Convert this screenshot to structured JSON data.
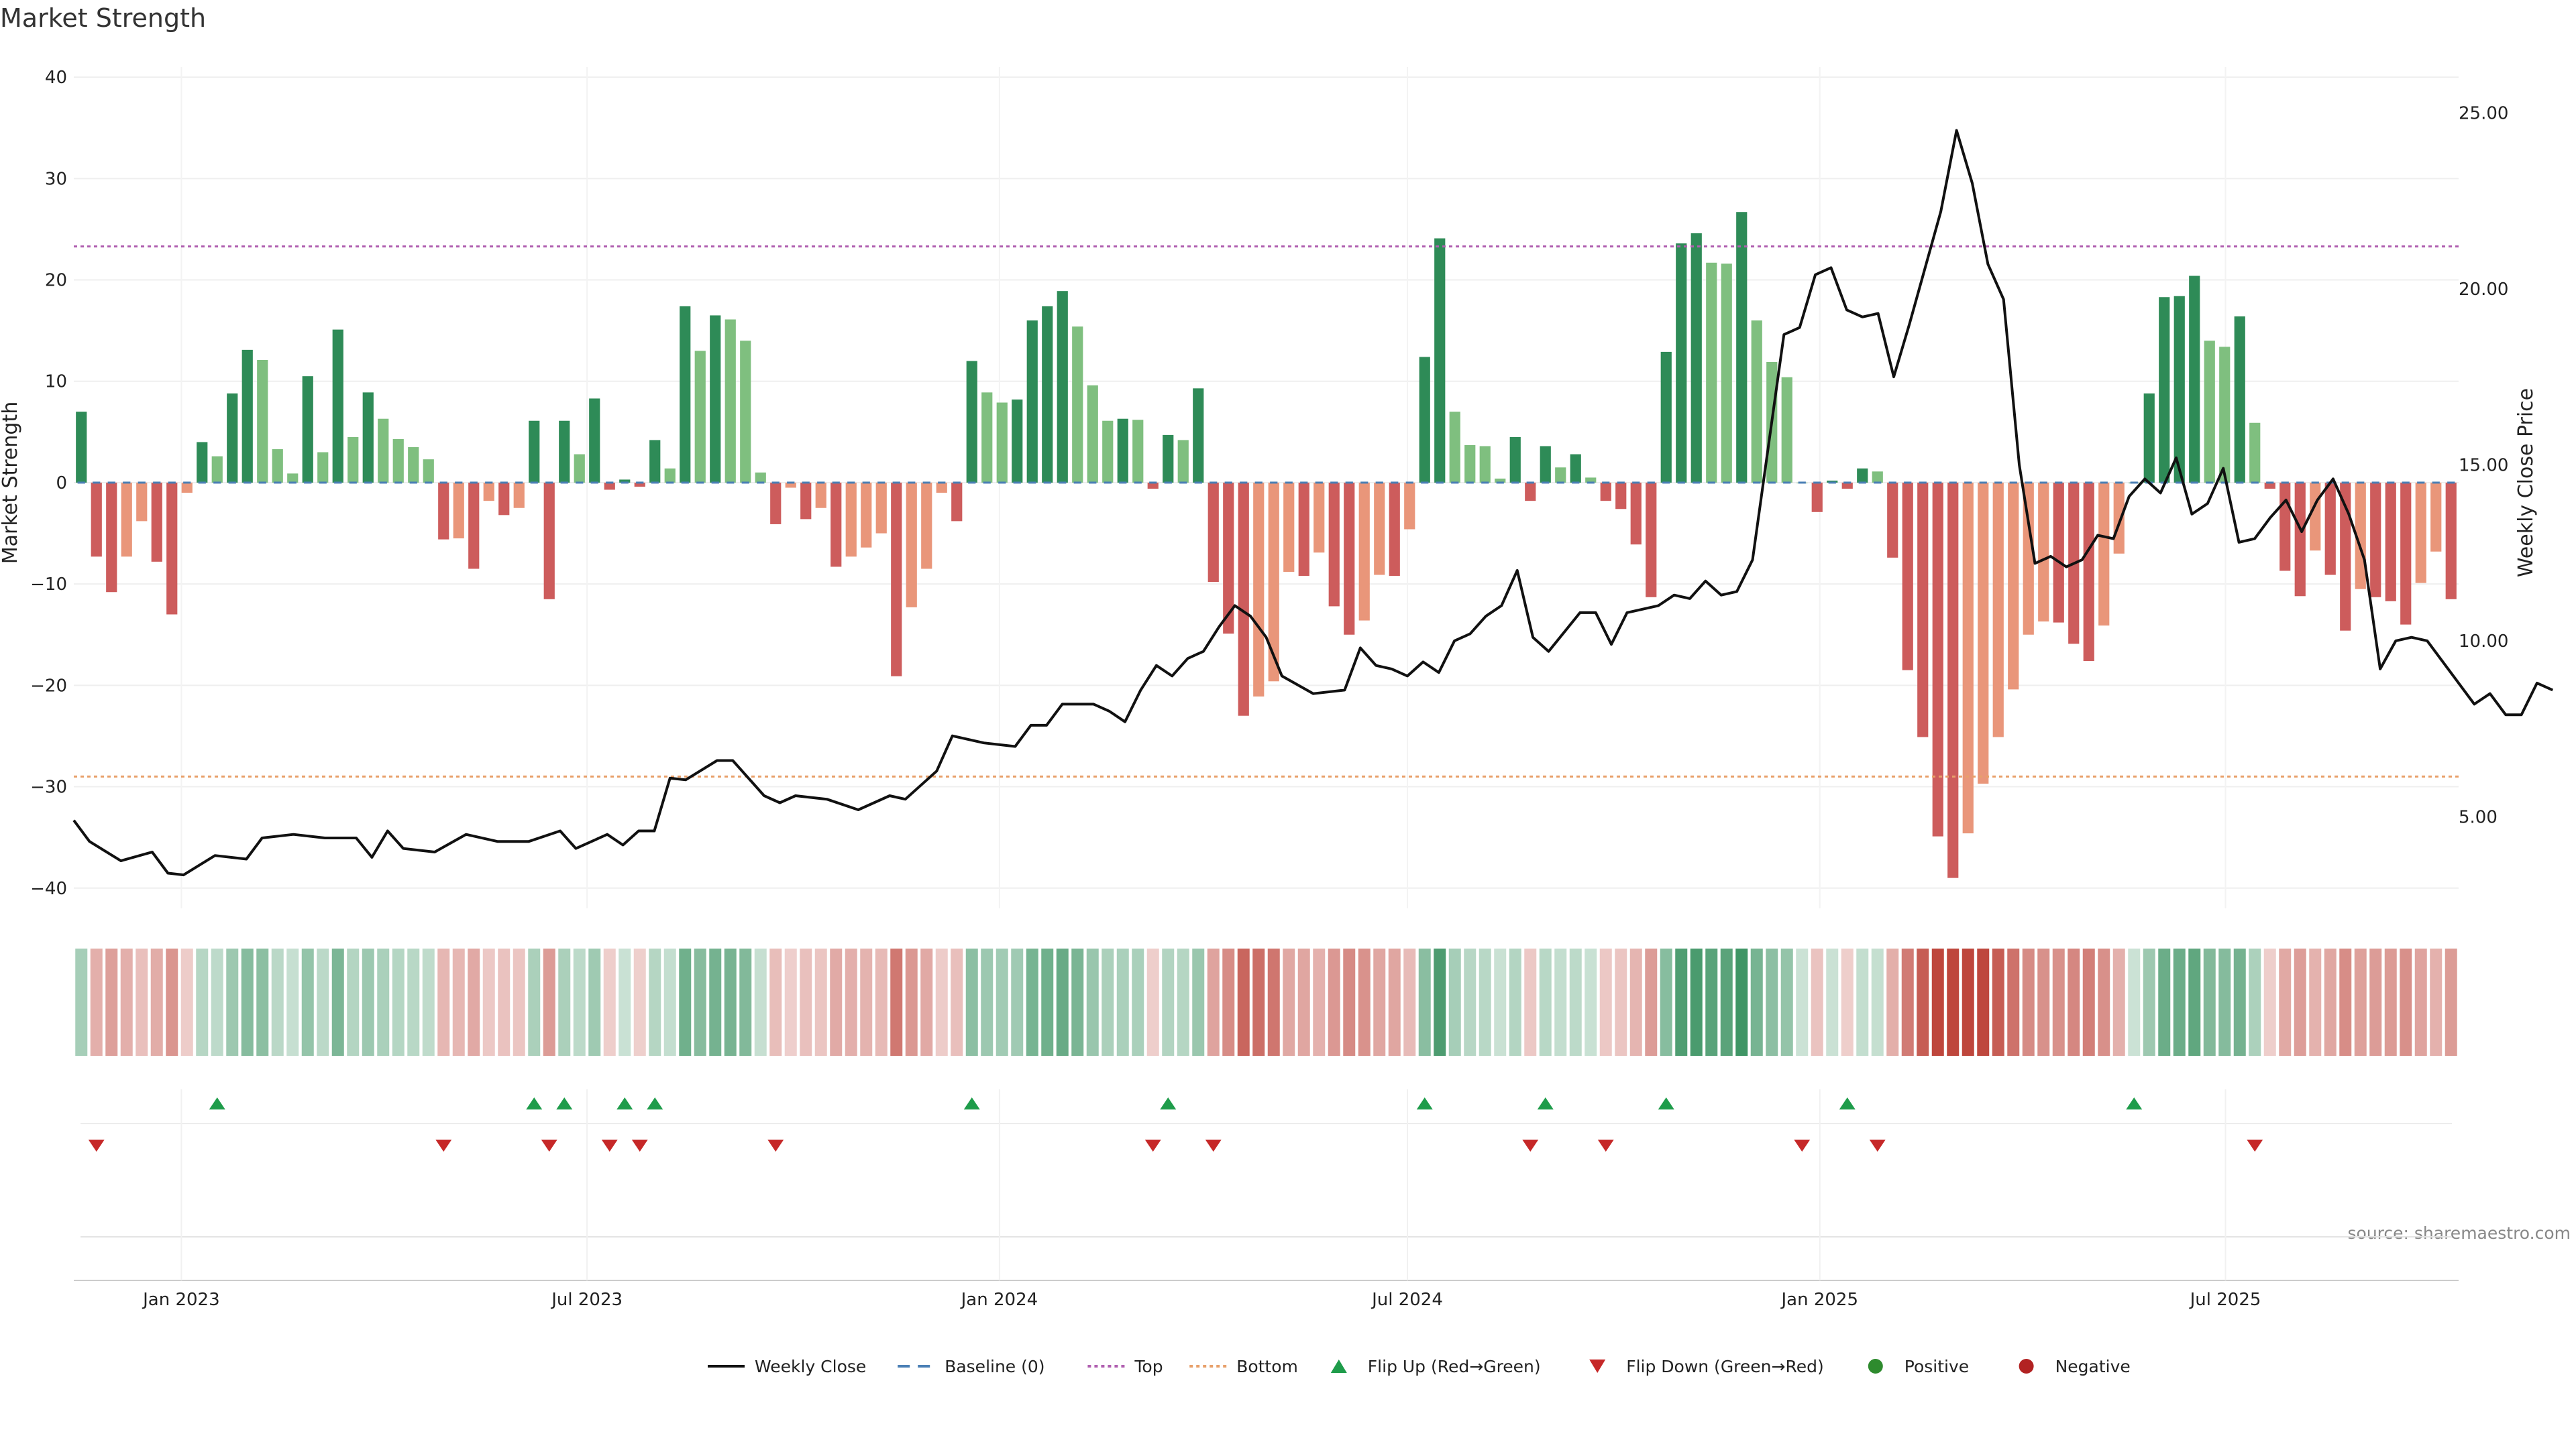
{
  "chart_data": {
    "type": "bar",
    "title": "Market Strength",
    "ylabel": "Market Strength",
    "y2label": "Weekly Close Price",
    "ylim": [
      -42,
      41
    ],
    "y2lim": [
      2.4,
      26.3
    ],
    "yticks": [
      "40",
      "30",
      "20",
      "10",
      "0",
      "−10",
      "−20",
      "−30",
      "−40"
    ],
    "ytick_values": [
      40,
      30,
      20,
      10,
      0,
      -10,
      -20,
      -30,
      -40
    ],
    "y2ticks": [
      "25.00",
      "20.00",
      "15.00",
      "10.00",
      "5.00"
    ],
    "y2tick_values": [
      25,
      20,
      15,
      10,
      5
    ],
    "top_line": 23.3,
    "bottom_line": -29.0,
    "grid": true,
    "legend_position": "bottom-center",
    "x_start": "2022-11-14",
    "x_end": "2025-10-13",
    "week_step_days": 7,
    "x_ticks": [
      {
        "label": "Jan 2023",
        "date": "2023-01-01"
      },
      {
        "label": "Jul 2023",
        "date": "2023-07-01"
      },
      {
        "label": "Jan 2024",
        "date": "2024-01-01"
      },
      {
        "label": "Jul 2024",
        "date": "2024-07-01"
      },
      {
        "label": "Jan 2025",
        "date": "2025-01-01"
      },
      {
        "label": "Jul 2025",
        "date": "2025-07-01"
      }
    ],
    "strength": [
      7,
      -7.3,
      -10.8,
      -7.3,
      -3.8,
      -7.8,
      -13,
      -1,
      4,
      2.6,
      8.8,
      13.1,
      12.1,
      3.3,
      0.9,
      10.5,
      3,
      15.1,
      4.5,
      8.9,
      6.3,
      4.3,
      3.5,
      2.3,
      -5.6,
      -5.5,
      -8.5,
      -1.8,
      -3.2,
      -2.5,
      6.1,
      -11.5,
      6.1,
      2.8,
      8.3,
      -0.7,
      0.3,
      -0.4,
      4.2,
      1.4,
      17.4,
      13,
      16.5,
      16.1,
      14,
      1,
      -4.1,
      -0.5,
      -3.6,
      -2.5,
      -8.3,
      -7.3,
      -6.4,
      -5,
      -19.1,
      -12.3,
      -8.5,
      -1,
      -3.8,
      12,
      8.9,
      7.9,
      8.2,
      16,
      17.4,
      18.9,
      15.4,
      9.6,
      6.1,
      6.3,
      6.2,
      -0.6,
      4.7,
      4.2,
      9.3,
      -9.8,
      -14.9,
      -23,
      -21.1,
      -19.6,
      -8.8,
      -9.2,
      -6.9,
      -12.2,
      -15,
      -13.6,
      -9.1,
      -9.2,
      -4.6,
      12.4,
      24.1,
      7,
      3.7,
      3.6,
      0.4,
      4.5,
      -1.8,
      3.6,
      1.5,
      2.8,
      0.5,
      -1.8,
      -2.6,
      -6.1,
      -11.3,
      12.9,
      23.6,
      24.6,
      21.7,
      21.6,
      26.7,
      16,
      11.9,
      10.4,
      0,
      -2.9,
      0.2,
      -0.6,
      1.4,
      1.1,
      -7.4,
      -18.5,
      -25.1,
      -34.9,
      -39,
      -34.6,
      -29.7,
      -25.1,
      -20.4,
      -15,
      -13.7,
      -13.8,
      -15.9,
      -17.6,
      -14.1,
      -7,
      0,
      8.8,
      18.3,
      18.4,
      20.4,
      14,
      13.4,
      16.4,
      5.9,
      -0.6,
      -8.7,
      -11.2,
      -6.7,
      -9.1,
      -14.6,
      -10.5,
      -11.3,
      -11.7,
      -14,
      -9.9,
      -6.8,
      -11.5
    ],
    "positive_color": "#2e8b57",
    "negative_color": "#cd5c5c",
    "weakening_positive_color": "#7fbf7f",
    "weakening_negative_color": "#e9967a",
    "weekly_close": {
      "name": "Weekly Close",
      "points": [
        [
          "2022-11-14",
          4.9
        ],
        [
          "2022-11-21",
          4.3
        ],
        [
          "2022-12-05",
          3.75
        ],
        [
          "2022-12-19",
          4.0
        ],
        [
          "2022-12-26",
          3.4
        ],
        [
          "2023-01-02",
          3.35
        ],
        [
          "2023-01-16",
          3.9
        ],
        [
          "2023-01-30",
          3.8
        ],
        [
          "2023-02-06",
          4.4
        ],
        [
          "2023-02-20",
          4.5
        ],
        [
          "2023-03-06",
          4.4
        ],
        [
          "2023-03-20",
          4.4
        ],
        [
          "2023-03-27",
          3.85
        ],
        [
          "2023-04-03",
          4.6
        ],
        [
          "2023-04-10",
          4.1
        ],
        [
          "2023-04-24",
          4.0
        ],
        [
          "2023-05-08",
          4.5
        ],
        [
          "2023-05-22",
          4.3
        ],
        [
          "2023-06-05",
          4.3
        ],
        [
          "2023-06-19",
          4.6
        ],
        [
          "2023-06-26",
          4.1
        ],
        [
          "2023-07-10",
          4.5
        ],
        [
          "2023-07-17",
          4.2
        ],
        [
          "2023-07-24",
          4.6
        ],
        [
          "2023-07-31",
          4.6
        ],
        [
          "2023-08-07",
          6.1
        ],
        [
          "2023-08-14",
          6.05
        ],
        [
          "2023-08-28",
          6.6
        ],
        [
          "2023-09-04",
          6.6
        ],
        [
          "2023-09-18",
          5.6
        ],
        [
          "2023-09-25",
          5.4
        ],
        [
          "2023-10-02",
          5.6
        ],
        [
          "2023-10-16",
          5.5
        ],
        [
          "2023-10-30",
          5.2
        ],
        [
          "2023-11-13",
          5.6
        ],
        [
          "2023-11-20",
          5.5
        ],
        [
          "2023-12-04",
          6.3
        ],
        [
          "2023-12-11",
          7.3
        ],
        [
          "2023-12-25",
          7.1
        ],
        [
          "2024-01-08",
          7.0
        ],
        [
          "2024-01-15",
          7.6
        ],
        [
          "2024-01-22",
          7.6
        ],
        [
          "2024-01-29",
          8.2
        ],
        [
          "2024-02-12",
          8.2
        ],
        [
          "2024-02-19",
          8.0
        ],
        [
          "2024-02-26",
          7.7
        ],
        [
          "2024-03-04",
          8.6
        ],
        [
          "2024-03-11",
          9.3
        ],
        [
          "2024-03-18",
          9.0
        ],
        [
          "2024-03-25",
          9.5
        ],
        [
          "2024-04-01",
          9.7
        ],
        [
          "2024-04-08",
          10.4
        ],
        [
          "2024-04-15",
          11.0
        ],
        [
          "2024-04-22",
          10.7
        ],
        [
          "2024-04-29",
          10.1
        ],
        [
          "2024-05-06",
          9.0
        ],
        [
          "2024-05-20",
          8.5
        ],
        [
          "2024-06-03",
          8.6
        ],
        [
          "2024-06-10",
          9.8
        ],
        [
          "2024-06-17",
          9.3
        ],
        [
          "2024-06-24",
          9.2
        ],
        [
          "2024-07-01",
          9.0
        ],
        [
          "2024-07-08",
          9.4
        ],
        [
          "2024-07-15",
          9.1
        ],
        [
          "2024-07-22",
          10.0
        ],
        [
          "2024-07-29",
          10.2
        ],
        [
          "2024-08-05",
          10.7
        ],
        [
          "2024-08-12",
          11.0
        ],
        [
          "2024-08-19",
          12.0
        ],
        [
          "2024-08-26",
          10.1
        ],
        [
          "2024-09-02",
          9.7
        ],
        [
          "2024-09-16",
          10.8
        ],
        [
          "2024-09-23",
          10.8
        ],
        [
          "2024-09-30",
          9.9
        ],
        [
          "2024-10-07",
          10.8
        ],
        [
          "2024-10-14",
          10.9
        ],
        [
          "2024-10-21",
          11.0
        ],
        [
          "2024-10-28",
          11.3
        ],
        [
          "2024-11-04",
          11.2
        ],
        [
          "2024-11-11",
          11.7
        ],
        [
          "2024-11-18",
          11.3
        ],
        [
          "2024-11-25",
          11.4
        ],
        [
          "2024-12-02",
          12.3
        ],
        [
          "2024-12-09",
          15.5
        ],
        [
          "2024-12-16",
          18.7
        ],
        [
          "2024-12-23",
          18.9
        ],
        [
          "2024-12-30",
          20.4
        ],
        [
          "2025-01-06",
          20.6
        ],
        [
          "2025-01-13",
          19.4
        ],
        [
          "2025-01-20",
          19.2
        ],
        [
          "2025-01-27",
          19.3
        ],
        [
          "2025-02-03",
          17.5
        ],
        [
          "2025-02-10",
          19.0
        ],
        [
          "2025-02-17",
          20.6
        ],
        [
          "2025-02-24",
          22.2
        ],
        [
          "2025-03-03",
          24.5
        ],
        [
          "2025-03-10",
          23.0
        ],
        [
          "2025-03-17",
          20.7
        ],
        [
          "2025-03-24",
          19.7
        ],
        [
          "2025-03-31",
          15.0
        ],
        [
          "2025-04-07",
          12.2
        ],
        [
          "2025-04-14",
          12.4
        ],
        [
          "2025-04-21",
          12.1
        ],
        [
          "2025-04-28",
          12.3
        ],
        [
          "2025-05-05",
          13.0
        ],
        [
          "2025-05-12",
          12.9
        ],
        [
          "2025-05-19",
          14.1
        ],
        [
          "2025-05-26",
          14.6
        ],
        [
          "2025-06-02",
          14.2
        ],
        [
          "2025-06-09",
          15.2
        ],
        [
          "2025-06-16",
          13.6
        ],
        [
          "2025-06-23",
          13.9
        ],
        [
          "2025-06-30",
          14.9
        ],
        [
          "2025-07-07",
          12.8
        ],
        [
          "2025-07-14",
          12.9
        ],
        [
          "2025-07-21",
          13.5
        ],
        [
          "2025-07-28",
          14.0
        ],
        [
          "2025-08-04",
          13.1
        ],
        [
          "2025-08-11",
          14.0
        ],
        [
          "2025-08-18",
          14.6
        ],
        [
          "2025-08-25",
          13.6
        ],
        [
          "2025-09-01",
          12.3
        ],
        [
          "2025-09-08",
          9.2
        ],
        [
          "2025-09-15",
          10.0
        ],
        [
          "2025-09-22",
          10.1
        ],
        [
          "2025-09-29",
          10.0
        ],
        [
          "2025-10-06",
          9.4
        ],
        [
          "2025-10-13",
          8.8
        ],
        [
          "2025-10-20",
          8.2
        ],
        [
          "2025-10-27",
          8.5
        ],
        [
          "2025-11-03",
          7.9
        ],
        [
          "2025-11-10",
          7.9
        ],
        [
          "2025-11-17",
          8.8
        ],
        [
          "2025-11-24",
          8.6
        ]
      ]
    },
    "heat_strip": {
      "bars": 158
    },
    "flip_up_weeks": [
      9,
      30,
      32,
      36,
      38,
      59,
      72,
      89,
      97,
      105,
      117,
      136
    ],
    "flip_down_weeks": [
      1,
      24,
      31,
      35,
      37,
      46,
      71,
      75,
      96,
      101,
      114,
      119,
      144
    ],
    "flip_up_color": "#1e9c4a",
    "flip_down_color": "#c62828",
    "legend": [
      {
        "label": "Weekly Close",
        "kind": "solid-line",
        "color": "#111111"
      },
      {
        "label": "Baseline (0)",
        "kind": "dashed-line",
        "color": "#4a7fb5"
      },
      {
        "label": "Top",
        "kind": "dotted-line",
        "color": "#b05fb0"
      },
      {
        "label": "Bottom",
        "kind": "dotted-line",
        "color": "#e8a06a"
      },
      {
        "label": "Flip Up (Red→Green)",
        "kind": "triangle-up",
        "color": "#1e9c4a"
      },
      {
        "label": "Flip Down (Green→Red)",
        "kind": "triangle-down",
        "color": "#c62828"
      },
      {
        "label": "Positive",
        "kind": "dot",
        "color": "#2e8b2e"
      },
      {
        "label": "Negative",
        "kind": "dot",
        "color": "#b22222"
      }
    ],
    "source": "source: sharemaestro.com"
  }
}
